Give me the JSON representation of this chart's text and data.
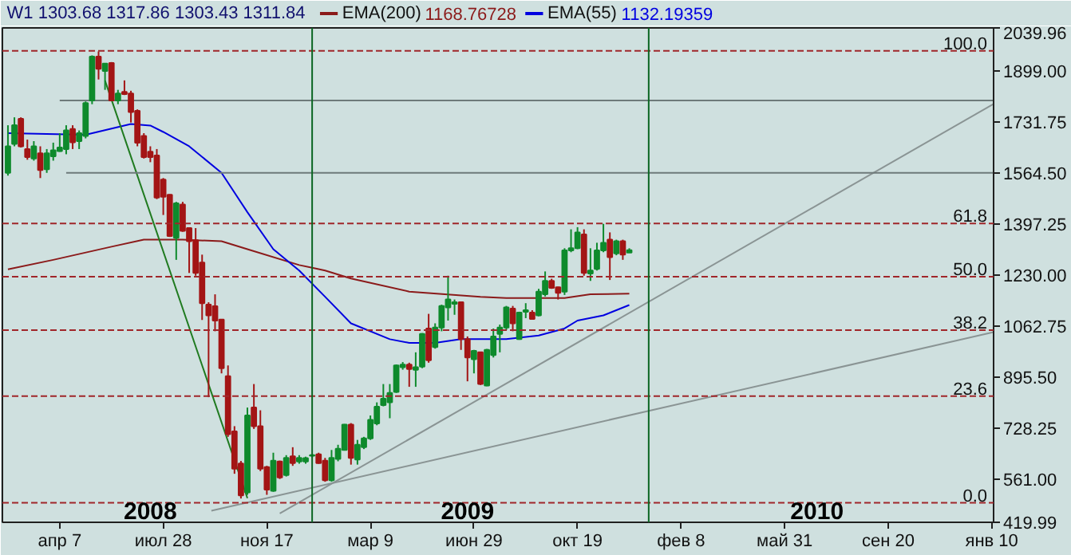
{
  "chart_data": {
    "type": "candlestick",
    "title": "W1 1303.68 1317.86 1303.43 1311.84",
    "x": [
      "2008-02-11",
      "2008-02-18",
      "2008-02-25",
      "2008-03-03",
      "2008-03-10",
      "2008-03-17",
      "2008-03-24",
      "2008-03-31",
      "2008-04-07",
      "2008-04-14",
      "2008-04-21",
      "2008-04-28",
      "2008-05-05",
      "2008-05-12",
      "2008-05-19",
      "2008-05-26",
      "2008-06-02",
      "2008-06-09",
      "2008-06-16",
      "2008-06-23",
      "2008-06-30",
      "2008-07-07",
      "2008-07-14",
      "2008-07-21",
      "2008-07-28",
      "2008-08-04",
      "2008-08-11",
      "2008-08-18",
      "2008-08-25",
      "2008-09-01",
      "2008-09-08",
      "2008-09-15",
      "2008-09-22",
      "2008-09-29",
      "2008-10-06",
      "2008-10-13",
      "2008-10-20",
      "2008-10-27",
      "2008-11-03",
      "2008-11-10",
      "2008-11-17",
      "2008-11-24",
      "2008-12-01",
      "2008-12-08",
      "2008-12-15",
      "2008-12-22",
      "2008-12-29",
      "2009-01-05",
      "2009-01-12",
      "2009-01-19",
      "2009-01-26",
      "2009-02-02",
      "2009-02-09",
      "2009-02-16",
      "2009-02-23",
      "2009-03-02",
      "2009-03-09",
      "2009-03-16",
      "2009-03-23",
      "2009-03-30",
      "2009-04-06",
      "2009-04-13",
      "2009-04-20",
      "2009-04-27",
      "2009-05-04",
      "2009-05-11",
      "2009-05-18",
      "2009-05-25",
      "2009-06-01",
      "2009-06-08",
      "2009-06-15",
      "2009-06-22",
      "2009-06-29",
      "2009-07-06",
      "2009-07-13",
      "2009-07-20",
      "2009-07-27",
      "2009-08-03",
      "2009-08-10",
      "2009-08-17",
      "2009-08-24",
      "2009-08-31",
      "2009-09-07",
      "2009-09-14",
      "2009-09-21",
      "2009-09-28",
      "2009-10-05",
      "2009-10-12",
      "2009-10-19",
      "2009-10-26",
      "2009-11-02",
      "2009-11-09",
      "2009-11-16",
      "2009-11-23",
      "2009-11-30",
      "2009-12-07",
      "2009-12-14"
    ],
    "ohlc": [
      [
        1565,
        1721,
        1556,
        1652
      ],
      [
        1660,
        1747,
        1652,
        1721
      ],
      [
        1742,
        1747,
        1648,
        1652
      ],
      [
        1643,
        1674,
        1608,
        1617
      ],
      [
        1612,
        1669,
        1605,
        1652
      ],
      [
        1629,
        1652,
        1548,
        1574
      ],
      [
        1577,
        1643,
        1565,
        1629
      ],
      [
        1619,
        1664,
        1605,
        1639
      ],
      [
        1636,
        1695,
        1634,
        1648
      ],
      [
        1643,
        1721,
        1626,
        1704
      ],
      [
        1709,
        1721,
        1643,
        1665
      ],
      [
        1669,
        1704,
        1643,
        1695
      ],
      [
        1686,
        1799,
        1678,
        1794
      ],
      [
        1802,
        1950,
        1790,
        1946
      ],
      [
        1946,
        1963,
        1871,
        1906
      ],
      [
        1899,
        1925,
        1837,
        1923
      ],
      [
        1925,
        1928,
        1800,
        1802
      ],
      [
        1802,
        1837,
        1790,
        1825
      ],
      [
        1830,
        1868,
        1820,
        1823
      ],
      [
        1825,
        1834,
        1730,
        1764
      ],
      [
        1768,
        1773,
        1652,
        1664
      ],
      [
        1686,
        1695,
        1612,
        1617
      ],
      [
        1634,
        1652,
        1600,
        1617
      ],
      [
        1622,
        1643,
        1479,
        1484
      ],
      [
        1543,
        1548,
        1427,
        1487
      ],
      [
        1493,
        1495,
        1355,
        1358
      ],
      [
        1352,
        1470,
        1280,
        1465
      ],
      [
        1461,
        1470,
        1372,
        1375
      ],
      [
        1384,
        1386,
        1237,
        1341
      ],
      [
        1344,
        1384,
        1228,
        1237
      ],
      [
        1271,
        1297,
        1083,
        1138
      ],
      [
        1133,
        1141,
        830,
        1098
      ],
      [
        1128,
        1167,
        1046,
        1081
      ],
      [
        1084,
        1086,
        908,
        925
      ],
      [
        899,
        934,
        700,
        709
      ],
      [
        718,
        735,
        579,
        596
      ],
      [
        613,
        621,
        498,
        508
      ],
      [
        518,
        796,
        510,
        770
      ],
      [
        796,
        873,
        726,
        735
      ],
      [
        735,
        787,
        588,
        596
      ],
      [
        601,
        605,
        510,
        527
      ],
      [
        523,
        648,
        520,
        622
      ],
      [
        619,
        622,
        562,
        567
      ],
      [
        575,
        640,
        570,
        631
      ],
      [
        636,
        666,
        605,
        614
      ],
      [
        619,
        640,
        612,
        631
      ],
      [
        619,
        635,
        612,
        630
      ],
      [
        638,
        643,
        632,
        640
      ],
      [
        643,
        648,
        612,
        614
      ],
      [
        622,
        631,
        553,
        558
      ],
      [
        558,
        657,
        553,
        631
      ],
      [
        628,
        674,
        620,
        661
      ],
      [
        657,
        742,
        655,
        740
      ],
      [
        740,
        745,
        609,
        631
      ],
      [
        626,
        690,
        609,
        674
      ],
      [
        666,
        700,
        660,
        695
      ],
      [
        695,
        770,
        690,
        756
      ],
      [
        744,
        813,
        738,
        799
      ],
      [
        804,
        873,
        800,
        825
      ],
      [
        813,
        873,
        761,
        844
      ],
      [
        847,
        937,
        844,
        934
      ],
      [
        928,
        945,
        920,
        937
      ],
      [
        937,
        943,
        864,
        922
      ],
      [
        920,
        977,
        864,
        928
      ],
      [
        930,
        1040,
        925,
        1037
      ],
      [
        1055,
        1103,
        943,
        951
      ],
      [
        994,
        1072,
        989,
        1058
      ],
      [
        1058,
        1133,
        1046,
        1129
      ],
      [
        1124,
        1228,
        1081,
        1150
      ],
      [
        1136,
        1150,
        1100,
        1141
      ],
      [
        1141,
        1143,
        985,
        1020
      ],
      [
        1020,
        1029,
        882,
        960
      ],
      [
        954,
        985,
        908,
        982
      ],
      [
        977,
        979,
        870,
        873
      ],
      [
        868,
        988,
        866,
        985
      ],
      [
        968,
        1055,
        960,
        1029
      ],
      [
        1037,
        1068,
        977,
        1058
      ],
      [
        1058,
        1129,
        1050,
        1124
      ],
      [
        1120,
        1129,
        1046,
        1072
      ],
      [
        1020,
        1110,
        1018,
        1107
      ],
      [
        1110,
        1138,
        1089,
        1115
      ],
      [
        1107,
        1115,
        1084,
        1086
      ],
      [
        1098,
        1185,
        1095,
        1176
      ],
      [
        1167,
        1242,
        1160,
        1211
      ],
      [
        1211,
        1218,
        1185,
        1188
      ],
      [
        1190,
        1192,
        1150,
        1172
      ],
      [
        1176,
        1318,
        1165,
        1311
      ],
      [
        1311,
        1380,
        1305,
        1318
      ],
      [
        1318,
        1387,
        1315,
        1370
      ],
      [
        1363,
        1380,
        1228,
        1237
      ],
      [
        1235,
        1318,
        1211,
        1245
      ],
      [
        1250,
        1336,
        1245,
        1311
      ],
      [
        1311,
        1398,
        1305,
        1336
      ],
      [
        1346,
        1370,
        1214,
        1289
      ],
      [
        1301,
        1346,
        1295,
        1341
      ],
      [
        1341,
        1346,
        1280,
        1297
      ],
      [
        1303.68,
        1317.86,
        1303.43,
        1311.84
      ]
    ],
    "series": [
      {
        "type": "line",
        "name": "EMA(200)",
        "color": "#8b1a1a",
        "x": [
          "2008-02-11",
          "2008-03-31",
          "2008-06-02",
          "2008-07-07",
          "2008-08-18",
          "2008-09-29",
          "2008-10-27",
          "2008-12-22",
          "2009-01-05",
          "2009-01-19",
          "2009-02-16",
          "2009-04-20",
          "2009-07-06",
          "2009-08-03",
          "2009-10-05",
          "2009-11-02",
          "2009-12-14"
        ],
        "values": [
          1249,
          1280,
          1323,
          1346,
          1346,
          1341,
          1315,
          1263,
          1254,
          1245,
          1219,
          1176,
          1159,
          1155,
          1155,
          1167,
          1169
        ]
      },
      {
        "type": "line",
        "name": "EMA(55)",
        "color": "#0000e0",
        "x": [
          "2008-02-11",
          "2008-05-05",
          "2008-06-23",
          "2008-07-14",
          "2008-07-28",
          "2008-08-25",
          "2008-09-29",
          "2008-10-27",
          "2008-11-24",
          "2008-12-22",
          "2009-01-19",
          "2009-02-16",
          "2009-03-30",
          "2009-04-20",
          "2009-05-18",
          "2009-06-15",
          "2009-08-03",
          "2009-09-07",
          "2009-10-05",
          "2009-10-19",
          "2009-11-16",
          "2009-12-14"
        ],
        "values": [
          1695,
          1690,
          1725,
          1720,
          1699,
          1652,
          1565,
          1436,
          1315,
          1245,
          1159,
          1072,
          1020,
          1008,
          1008,
          1020,
          1020,
          1032,
          1055,
          1081,
          1098,
          1132
        ]
      },
      {
        "type": "line",
        "color": "#1f7a1f",
        "x": [
          "2008-05-26",
          "2008-10-27"
        ],
        "values": [
          1867,
          499
        ]
      },
      {
        "type": "line",
        "color": "#8a9494",
        "x": [
          "2008-12-01",
          "2011-01-12"
        ],
        "values": [
          449,
          1791
        ]
      },
      {
        "type": "line",
        "color": "#8a9494",
        "x": [
          "2008-09-18",
          "2011-01-12"
        ],
        "values": [
          458,
          1043
        ]
      },
      {
        "type": "line",
        "color": "#6e7a7a",
        "x": [
          "2008-04-07",
          "2011-01-12"
        ],
        "values": [
          1802,
          1802
        ]
      },
      {
        "type": "line",
        "color": "#6e7a7a",
        "x": [
          "2008-04-14",
          "2011-01-12"
        ],
        "values": [
          1565,
          1565
        ]
      }
    ],
    "xlim": [
      "2008-02-05",
      "2011-01-12"
    ],
    "ylim": [
      419.99,
      2039.96
    ],
    "xticks": [
      {
        "value": "2008-04-07",
        "label": "апр 7"
      },
      {
        "value": "2008-07-28",
        "label": "июл 28"
      },
      {
        "value": "2008-11-17",
        "label": "ноя 17"
      },
      {
        "value": "2009-03-09",
        "label": "мар 9"
      },
      {
        "value": "2009-06-29",
        "label": "июн 29"
      },
      {
        "value": "2009-10-19",
        "label": "окт 19"
      },
      {
        "value": "2010-02-08",
        "label": "фев 8"
      },
      {
        "value": "2010-05-31",
        "label": "май 31"
      },
      {
        "value": "2010-09-20",
        "label": "сен 20"
      },
      {
        "value": "2011-01-10",
        "label": "янв 10"
      }
    ],
    "yticks": [
      {
        "value": 419.99,
        "label": "419.99"
      },
      {
        "value": 561,
        "label": "561.00"
      },
      {
        "value": 728.25,
        "label": "728.25"
      },
      {
        "value": 895.5,
        "label": "895.50"
      },
      {
        "value": 1062.75,
        "label": "1062.75"
      },
      {
        "value": 1230,
        "label": "1230.00"
      },
      {
        "value": 1397.25,
        "label": "1397.25"
      },
      {
        "value": 1564.5,
        "label": "1564.50"
      },
      {
        "value": 1731.75,
        "label": "1731.75"
      },
      {
        "value": 1899,
        "label": "1899.00"
      },
      {
        "value": 2039.96,
        "label": "2039.96"
      }
    ],
    "ref_lines": [
      {
        "axis": "y",
        "value": 1965,
        "color": "#a0262a",
        "line_style": "dashed"
      },
      {
        "axis": "y",
        "value": 1399.3,
        "color": "#a0262a",
        "line_style": "dashed"
      },
      {
        "axis": "y",
        "value": 1224.5,
        "color": "#a0262a",
        "line_style": "dashed"
      },
      {
        "axis": "y",
        "value": 1049.7,
        "color": "#a0262a",
        "line_style": "dashed"
      },
      {
        "axis": "y",
        "value": 833.5,
        "color": "#a0262a",
        "line_style": "dashed"
      },
      {
        "axis": "y",
        "value": 484,
        "color": "#a0262a",
        "line_style": "dashed"
      },
      {
        "axis": "x",
        "value": "2009-01-05",
        "color": "#0b6623",
        "line_style": "solid"
      },
      {
        "axis": "x",
        "value": "2010-01-04",
        "color": "#0b6623",
        "line_style": "solid"
      }
    ],
    "annotations": [
      "1168.76728",
      "1132.19359",
      {
        "text": "100.0",
        "x": "2011-01-12",
        "y": 1965
      },
      {
        "text": "61.8",
        "x": "2011-01-12",
        "y": 1399.3
      },
      {
        "text": "50.0",
        "x": "2011-01-12",
        "y": 1224.5
      },
      {
        "text": "38.2",
        "x": "2011-01-12",
        "y": 1049.7
      },
      {
        "text": "23.6",
        "x": "2011-01-12",
        "y": 833.5
      },
      {
        "text": "0.0",
        "x": "2011-01-12",
        "y": 484
      },
      {
        "text": "2008",
        "x": "2008-07-14",
        "y": 460
      },
      {
        "text": "2009",
        "x": "2009-06-22",
        "y": 460
      },
      {
        "text": "2010",
        "x": "2010-07-05",
        "y": 460
      }
    ],
    "grid": false,
    "legend": "top"
  }
}
